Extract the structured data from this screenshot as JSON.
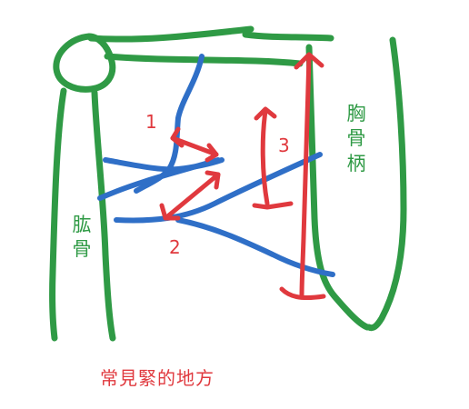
{
  "labels": {
    "humerus": "肱骨",
    "manubrium": "胸骨柄",
    "marker_1": "1",
    "marker_2": "2",
    "marker_3": "3"
  },
  "caption": "常見緊的地方",
  "colors": {
    "bone": "#2f9a45",
    "muscle": "#2f6fc7",
    "marker": "#e0393e"
  }
}
